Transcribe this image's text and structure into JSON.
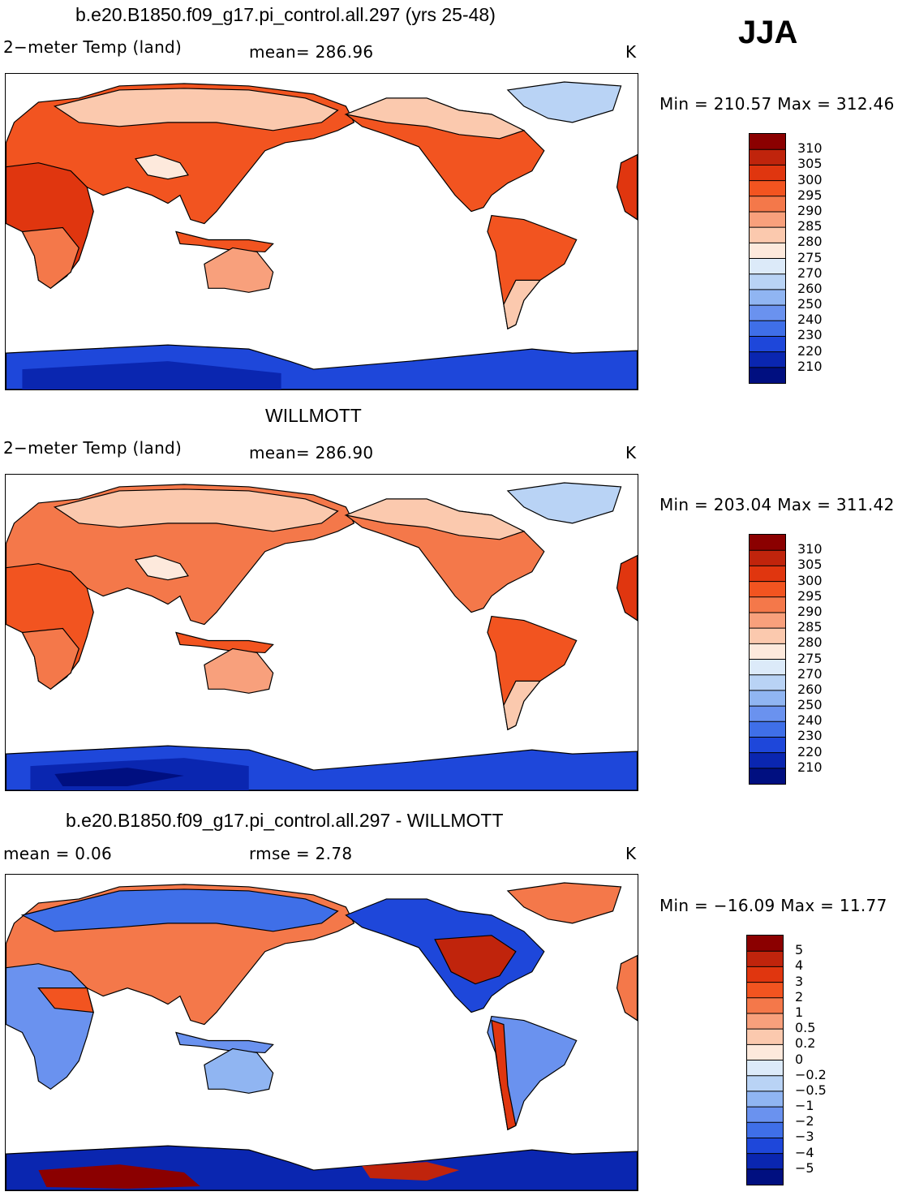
{
  "season": "JJA",
  "panels": [
    {
      "title": "b.e20.B1850.f09_g17.pi_control.all.297 (yrs 25-48)",
      "variable": "2−meter Temp (land)",
      "stat": "mean=  286.96",
      "units": "K",
      "minmax": "Min  =  210.57  Max  =  312.46",
      "colorbar": {
        "labels": [
          "310",
          "305",
          "300",
          "295",
          "290",
          "285",
          "280",
          "275",
          "270",
          "260",
          "250",
          "240",
          "230",
          "220",
          "210"
        ],
        "colors": [
          "#8b0000",
          "#c0240c",
          "#e0360f",
          "#f25420",
          "#f4784a",
          "#f8a07c",
          "#fbc9ae",
          "#fde9dc",
          "#dceaf9",
          "#b9d3f5",
          "#90b5f2",
          "#6a92ef",
          "#3f6fe8",
          "#1e47da",
          "#0a26b0",
          "#000f80"
        ]
      }
    },
    {
      "title": "WILLMOTT",
      "variable": "2−meter Temp (land)",
      "stat": "mean=  286.90",
      "units": "K",
      "minmax": "Min  =  203.04  Max  =  311.42",
      "colorbar": {
        "labels": [
          "310",
          "305",
          "300",
          "295",
          "290",
          "285",
          "280",
          "275",
          "270",
          "260",
          "250",
          "240",
          "230",
          "220",
          "210"
        ],
        "colors": [
          "#8b0000",
          "#c0240c",
          "#e0360f",
          "#f25420",
          "#f4784a",
          "#f8a07c",
          "#fbc9ae",
          "#fde9dc",
          "#dceaf9",
          "#b9d3f5",
          "#90b5f2",
          "#6a92ef",
          "#3f6fe8",
          "#1e47da",
          "#0a26b0",
          "#000f80"
        ]
      }
    },
    {
      "title": "b.e20.B1850.f09_g17.pi_control.all.297 - WILLMOTT",
      "variable": "mean  =       0.06",
      "stat": "rmse  =       2.78",
      "units": "K",
      "minmax": "Min  =  −16.09  Max  =    11.77",
      "colorbar": {
        "labels": [
          "5",
          "4",
          "3",
          "2",
          "1",
          "0.5",
          "0.2",
          "0",
          "−0.2",
          "−0.5",
          "−1",
          "−2",
          "−3",
          "−4",
          "−5"
        ],
        "colors": [
          "#8b0000",
          "#c0240c",
          "#e0360f",
          "#f25420",
          "#f4784a",
          "#f8a07c",
          "#fbc9ae",
          "#fde9dc",
          "#dceaf9",
          "#b9d3f5",
          "#90b5f2",
          "#6a92ef",
          "#3f6fe8",
          "#1e47da",
          "#0a26b0",
          "#000f80"
        ]
      }
    }
  ]
}
